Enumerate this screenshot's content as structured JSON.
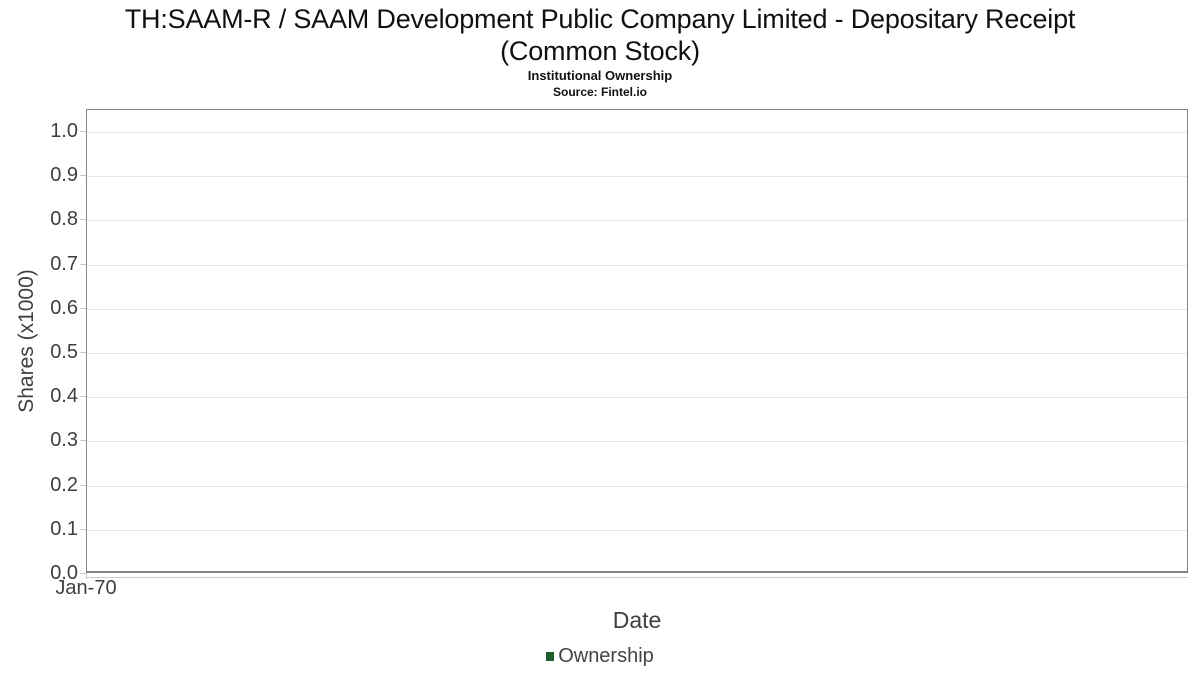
{
  "header": {
    "title_line1": "TH:SAAM-R / SAAM Development Public Company Limited - Depositary Receipt",
    "title_line2": "(Common Stock)",
    "subtitle": "Institutional Ownership",
    "source": "Source: Fintel.io"
  },
  "chart_data": {
    "type": "line",
    "title": "TH:SAAM-R / SAAM Development Public Company Limited - Depositary Receipt (Common Stock)",
    "subtitle": "Institutional Ownership",
    "source": "Source: Fintel.io",
    "xlabel": "Date",
    "ylabel": "Shares (x1000)",
    "x_ticks": [
      "Jan-70"
    ],
    "y_tick_labels": [
      "1.0",
      "0.9",
      "0.8",
      "0.7",
      "0.6",
      "0.5",
      "0.4",
      "0.3",
      "0.2",
      "0.1",
      "0.0"
    ],
    "ylim": [
      0,
      1.05
    ],
    "grid": true,
    "legend": {
      "position": "bottom",
      "entries": [
        {
          "label": "Ownership",
          "color": "#1e5b2d"
        }
      ]
    },
    "series": [
      {
        "name": "Ownership",
        "x": [],
        "y": [],
        "color": "#1e5b2d"
      }
    ]
  },
  "colors": {
    "grid": "#e6e6e6",
    "axis_border": "#848484",
    "tick": "#c9c9c9",
    "title_text": "#111111",
    "axis_text": "#3f3f3f",
    "legend_text": "#444444",
    "legend_green": "#1e5b2d"
  }
}
